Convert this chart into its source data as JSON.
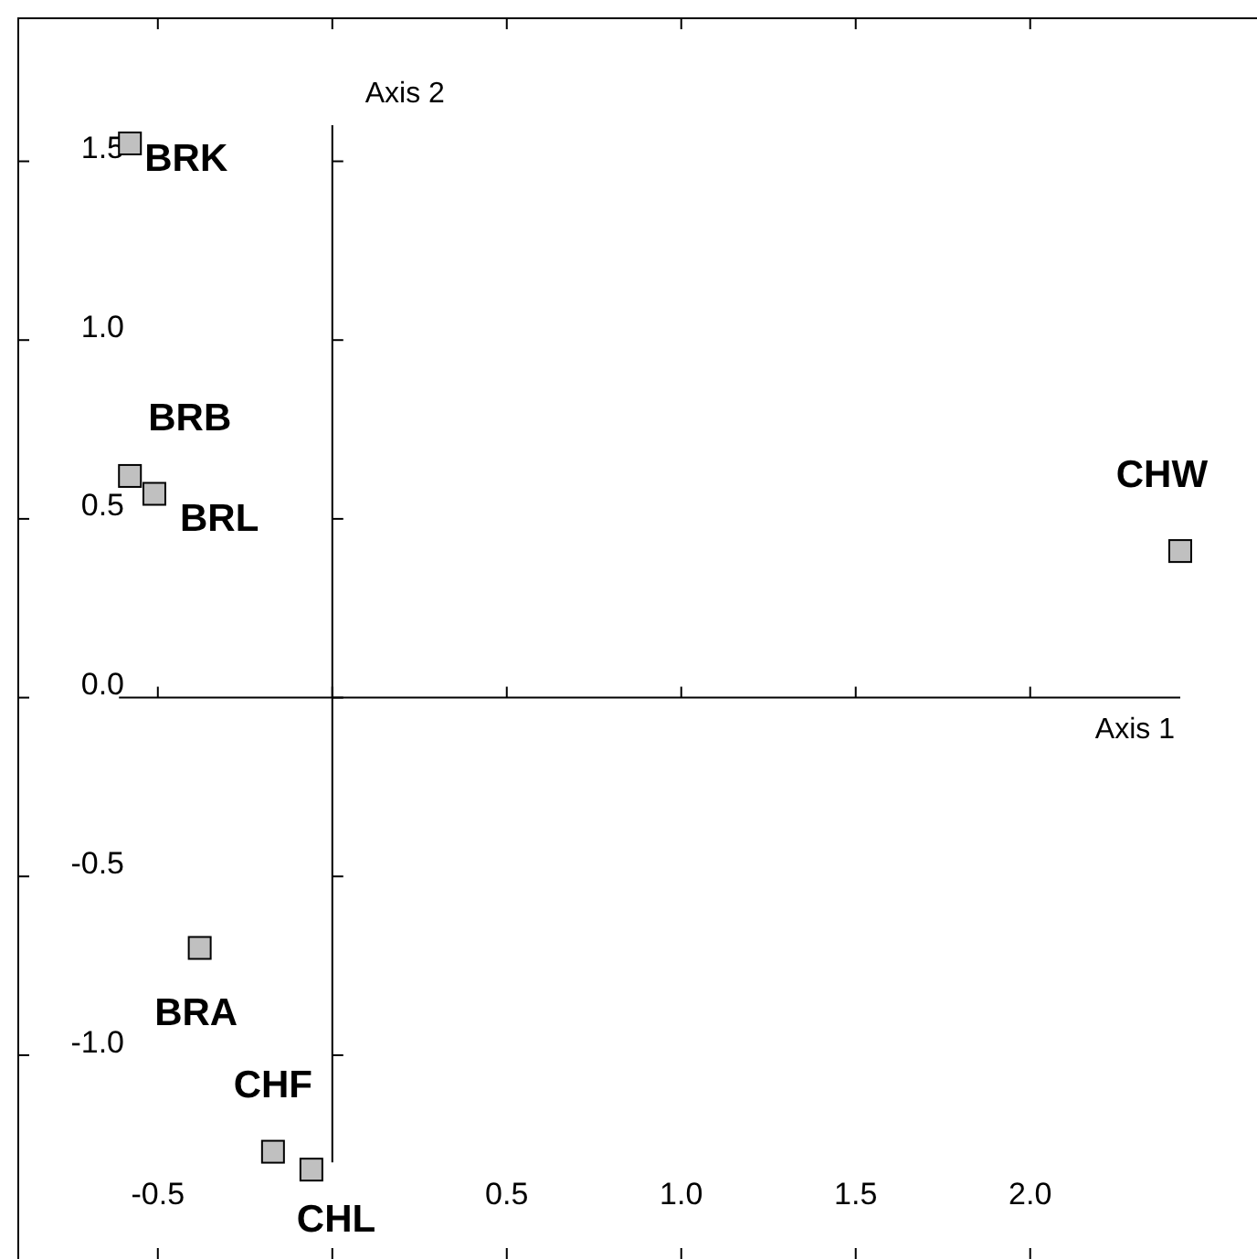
{
  "chart_data": {
    "type": "scatter",
    "xlabel": "Axis 1",
    "ylabel": "Axis 2",
    "xlim": [
      -0.9,
      2.65
    ],
    "ylim": [
      -1.57,
      1.9
    ],
    "xticks": [
      {
        "value": -0.5,
        "label": "-0.5"
      },
      {
        "value": 0,
        "label": null
      },
      0.5,
      {
        "value": 1,
        "label": "1.0"
      },
      1.5,
      {
        "value": 2,
        "label": "2.0"
      }
    ],
    "yticks": [
      {
        "value": -1,
        "label": "-1.0"
      },
      -0.5,
      {
        "value": 0,
        "label": "0.0"
      },
      0.5,
      {
        "value": 1,
        "label": "1.0"
      },
      1.5
    ],
    "marker": "square",
    "series": [
      {
        "color": "#c0c0c0",
        "x": [
          -0.58,
          -0.58,
          -0.51,
          2.43,
          -0.38,
          -0.17,
          -0.06
        ],
        "values": [
          1.55,
          0.62,
          0.57,
          0.41,
          -0.7,
          -1.27,
          -1.32
        ]
      }
    ],
    "annotations": [
      {
        "text": "BRK",
        "x": -0.58,
        "y": 1.55
      },
      {
        "text": "BRB",
        "x": -0.58,
        "y": 0.62
      },
      {
        "text": "BRL",
        "x": -0.51,
        "y": 0.57
      },
      {
        "text": "CHW",
        "x": 2.43,
        "y": 0.41
      },
      {
        "text": "BRA",
        "x": -0.38,
        "y": -0.7
      },
      {
        "text": "CHF",
        "x": -0.17,
        "y": -1.27
      },
      {
        "text": "CHL",
        "x": -0.06,
        "y": -1.32
      }
    ]
  }
}
